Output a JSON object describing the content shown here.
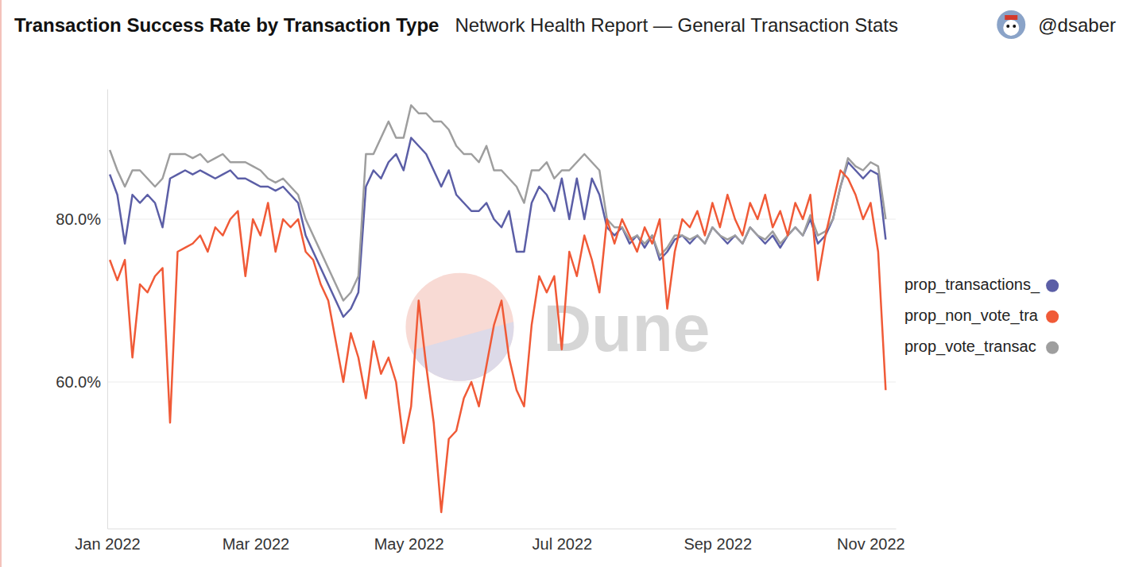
{
  "chart_data": {
    "type": "line",
    "title": "Transaction Success Rate by Transaction Type",
    "subtitle": "Network Health Report — General Transaction Stats",
    "author": "@dsaber",
    "watermark": "Dune",
    "x": [
      1,
      4,
      7,
      10,
      13,
      16,
      19,
      22,
      25,
      28,
      31,
      34,
      37,
      40,
      43,
      46,
      49,
      52,
      55,
      58,
      61,
      64,
      67,
      70,
      73,
      76,
      79,
      82,
      85,
      88,
      91,
      94,
      97,
      100,
      103,
      106,
      109,
      112,
      115,
      118,
      121,
      124,
      127,
      130,
      133,
      136,
      139,
      142,
      145,
      148,
      151,
      154,
      157,
      160,
      163,
      166,
      169,
      172,
      175,
      178,
      181,
      184,
      187,
      190,
      193,
      196,
      199,
      202,
      205,
      208,
      211,
      214,
      217,
      220,
      223,
      226,
      229,
      232,
      235,
      238,
      241,
      244,
      247,
      250,
      253,
      256,
      259,
      262,
      265,
      268,
      271,
      274,
      277,
      280,
      283,
      286,
      289,
      292,
      295,
      298,
      301,
      304,
      307,
      310
    ],
    "xlim": [
      0,
      314
    ],
    "xticks": [
      {
        "value": 0,
        "label": "Jan 2022"
      },
      {
        "value": 59,
        "label": "Mar 2022"
      },
      {
        "value": 120,
        "label": "May 2022"
      },
      {
        "value": 181,
        "label": "Jul 2022"
      },
      {
        "value": 243,
        "label": "Sep 2022"
      },
      {
        "value": 304,
        "label": "Nov 2022"
      }
    ],
    "ylim": [
      42,
      96
    ],
    "yticks": [
      {
        "value": 60,
        "label": "60.0%"
      },
      {
        "value": 80,
        "label": "80.0%"
      }
    ],
    "grid": true,
    "legend": "right",
    "series": [
      {
        "name": "prop_transactions_",
        "color": "#5b5ea6",
        "values": [
          85.5,
          83,
          77,
          83,
          82,
          83,
          82,
          79,
          85,
          85.5,
          86,
          85.5,
          86,
          85.5,
          85,
          85.5,
          86,
          85,
          85,
          84.5,
          84,
          84,
          83.5,
          84,
          83,
          82,
          78,
          76,
          74,
          72,
          70,
          68,
          69,
          71,
          84,
          86,
          85,
          87,
          88,
          86,
          90,
          89,
          88,
          86,
          84,
          86,
          83,
          82,
          81,
          81,
          82,
          80,
          79,
          81,
          76,
          76,
          82,
          84,
          83,
          81,
          85,
          80,
          85,
          80,
          85,
          83,
          79,
          78,
          79,
          77,
          78,
          76.5,
          78,
          75,
          76,
          77.5,
          78,
          77,
          78,
          77,
          79,
          78,
          77,
          78,
          77,
          79,
          78,
          77,
          78,
          76.5,
          78,
          79,
          78,
          80,
          77,
          78,
          80,
          84,
          87,
          86,
          85,
          86,
          85.5,
          77.5
        ]
      },
      {
        "name": "prop_non_vote_tra",
        "color": "#f05a37",
        "values": [
          75,
          72.5,
          75,
          63,
          72,
          71,
          73,
          74,
          55,
          76,
          76.5,
          77,
          78,
          76,
          79,
          78,
          80,
          81,
          73,
          80,
          78,
          82,
          76,
          80,
          79,
          80,
          76,
          75,
          72,
          70,
          65,
          60,
          66,
          63,
          58,
          65,
          61,
          63,
          60,
          52.5,
          57,
          70,
          62,
          55,
          44,
          53,
          54,
          58,
          60,
          57,
          62,
          67,
          70,
          63,
          59,
          57,
          67,
          73,
          71,
          73,
          64,
          76,
          73,
          78,
          75,
          71,
          80,
          77,
          80,
          78,
          76,
          79,
          77,
          80,
          69,
          76,
          80,
          79,
          81,
          78,
          82,
          79,
          83,
          80,
          78,
          82,
          80,
          83,
          79,
          81,
          78,
          82,
          80,
          83,
          72.5,
          78,
          82,
          86,
          85,
          83,
          80,
          82,
          76,
          59
        ]
      },
      {
        "name": "prop_vote_transac",
        "color": "#9e9e9e",
        "values": [
          88.5,
          86,
          84,
          86,
          86,
          85,
          84,
          85,
          88,
          88,
          88,
          87.5,
          88,
          87,
          87.5,
          88,
          87,
          87,
          87,
          86.5,
          86,
          85,
          84.5,
          85,
          84,
          83,
          80,
          78,
          76,
          74,
          72,
          70,
          71,
          73,
          88,
          88,
          90,
          92,
          90,
          90,
          94,
          93,
          93,
          92,
          92,
          91,
          89,
          88,
          88,
          87,
          89,
          86,
          86,
          85,
          84,
          82,
          86,
          86,
          87,
          85,
          86,
          86,
          87,
          88,
          87,
          86,
          80,
          79,
          79,
          77.5,
          78,
          77,
          78,
          75.5,
          76.5,
          78,
          78,
          77.5,
          78,
          77,
          79,
          78,
          77.5,
          78,
          77,
          79,
          78,
          77.5,
          78.5,
          77,
          78,
          79,
          78,
          80.5,
          78,
          78.5,
          80,
          84,
          87.5,
          86.5,
          86,
          87,
          86.5,
          80
        ]
      }
    ]
  }
}
